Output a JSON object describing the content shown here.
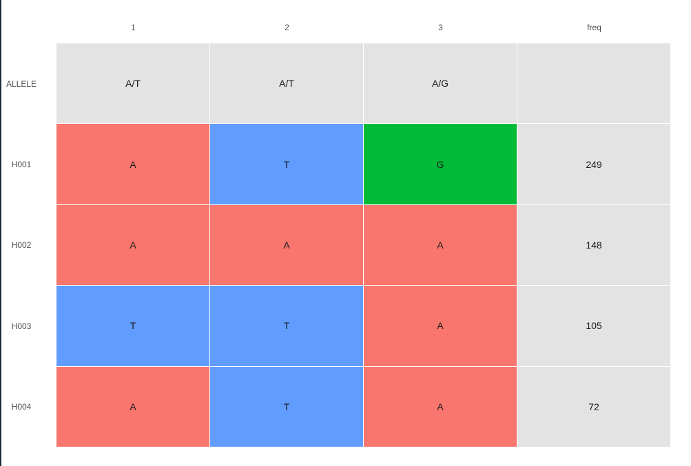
{
  "chart_data": {
    "type": "heatmap",
    "columns": [
      "1",
      "2",
      "3",
      "freq"
    ],
    "rows": [
      {
        "label": "ALLELE",
        "cells": [
          "A/T",
          "A/T",
          "A/G",
          ""
        ]
      },
      {
        "label": "H001",
        "cells": [
          "A",
          "T",
          "G",
          "249"
        ]
      },
      {
        "label": "H002",
        "cells": [
          "A",
          "A",
          "A",
          "148"
        ]
      },
      {
        "label": "H003",
        "cells": [
          "T",
          "T",
          "A",
          "105"
        ]
      },
      {
        "label": "H004",
        "cells": [
          "A",
          "T",
          "A",
          "72"
        ]
      }
    ],
    "colors": {
      "A": "#F8766D",
      "T": "#619CFF",
      "G": "#00BA38",
      "default": "#E3E3E3",
      "gridline": "#ffffff"
    }
  }
}
